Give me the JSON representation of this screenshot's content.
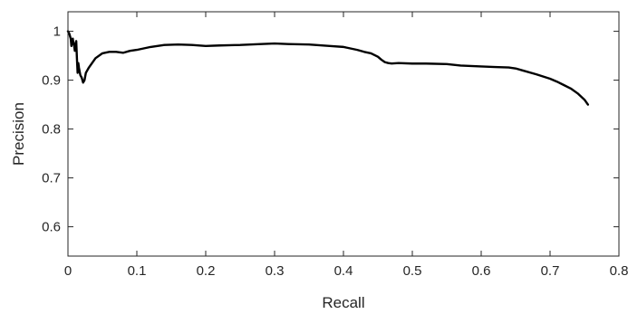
{
  "chart_data": {
    "type": "line",
    "title": "",
    "xlabel": "Recall",
    "ylabel": "Precision",
    "xlim": [
      0,
      0.8
    ],
    "ylim": [
      0.54,
      1.04
    ],
    "xticks": [
      0,
      0.1,
      0.2,
      0.3,
      0.4,
      0.5,
      0.6,
      0.7,
      0.8
    ],
    "xtick_labels": [
      "0",
      "0.1",
      "0.2",
      "0.3",
      "0.4",
      "0.5",
      "0.6",
      "0.7",
      "0.8"
    ],
    "yticks": [
      0.6,
      0.7,
      0.8,
      0.9,
      1.0
    ],
    "ytick_labels": [
      "0.6",
      "0.7",
      "0.8",
      "0.9",
      "1"
    ],
    "grid": false,
    "line_color": "#000000",
    "series": [
      {
        "x": [
          0.0,
          0.002,
          0.004,
          0.005,
          0.006,
          0.007,
          0.008,
          0.009,
          0.01,
          0.011,
          0.012,
          0.013,
          0.014,
          0.015,
          0.016,
          0.018,
          0.02,
          0.022,
          0.024,
          0.026,
          0.028,
          0.03,
          0.035,
          0.04,
          0.05,
          0.06,
          0.07,
          0.08,
          0.09,
          0.1,
          0.11,
          0.12,
          0.14,
          0.16,
          0.18,
          0.2,
          0.22,
          0.25,
          0.28,
          0.3,
          0.32,
          0.35,
          0.38,
          0.4,
          0.41,
          0.42,
          0.43,
          0.44,
          0.45,
          0.455,
          0.46,
          0.465,
          0.47,
          0.48,
          0.5,
          0.52,
          0.55,
          0.57,
          0.6,
          0.62,
          0.64,
          0.65,
          0.66,
          0.68,
          0.7,
          0.71,
          0.72,
          0.73,
          0.74,
          0.75,
          0.755
        ],
        "y": [
          1.0,
          0.995,
          0.985,
          0.97,
          0.98,
          0.985,
          0.975,
          0.97,
          0.96,
          0.975,
          0.98,
          0.945,
          0.915,
          0.935,
          0.925,
          0.91,
          0.905,
          0.895,
          0.9,
          0.915,
          0.92,
          0.925,
          0.935,
          0.945,
          0.955,
          0.958,
          0.958,
          0.956,
          0.96,
          0.962,
          0.965,
          0.968,
          0.972,
          0.973,
          0.972,
          0.97,
          0.971,
          0.972,
          0.974,
          0.975,
          0.974,
          0.973,
          0.97,
          0.968,
          0.965,
          0.962,
          0.958,
          0.955,
          0.948,
          0.942,
          0.937,
          0.935,
          0.934,
          0.935,
          0.934,
          0.934,
          0.933,
          0.93,
          0.928,
          0.927,
          0.926,
          0.924,
          0.92,
          0.912,
          0.903,
          0.897,
          0.89,
          0.883,
          0.873,
          0.86,
          0.85
        ]
      }
    ]
  }
}
